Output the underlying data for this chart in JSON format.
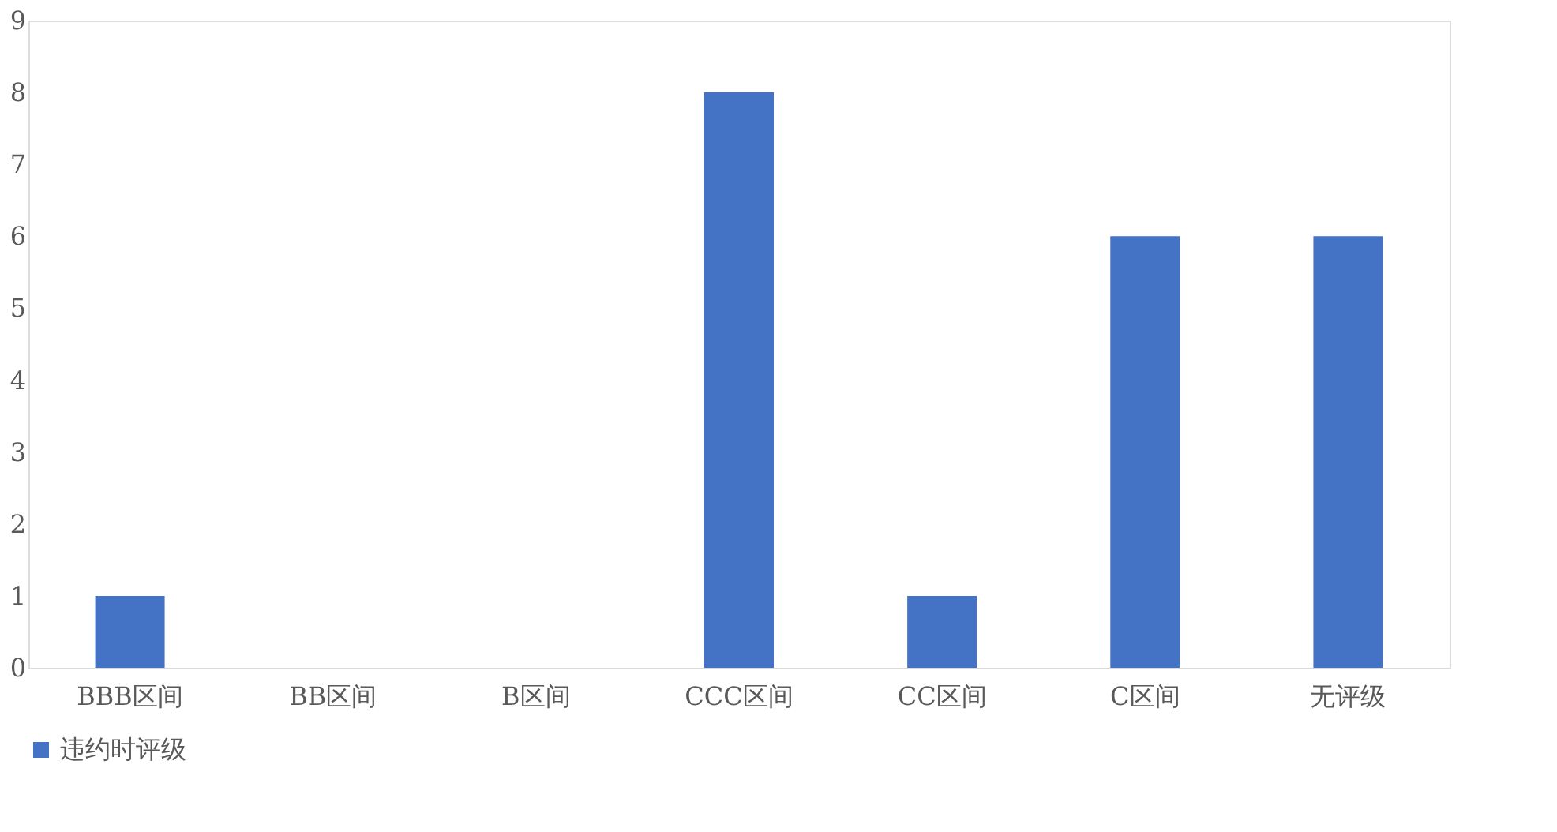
{
  "chart_data": {
    "type": "bar",
    "categories": [
      "BBB区间",
      "BB区间",
      "B区间",
      "CCC区间",
      "CC区间",
      "C区间",
      "无评级"
    ],
    "series": [
      {
        "name": "违约时评级",
        "color": "#4472c4",
        "values": [
          1,
          0,
          0,
          8,
          1,
          6,
          6
        ]
      }
    ],
    "ylim": [
      0,
      9
    ],
    "yticks": [
      0,
      1,
      2,
      3,
      4,
      5,
      6,
      7,
      8,
      9
    ],
    "grid": false,
    "legend": "bottom"
  }
}
